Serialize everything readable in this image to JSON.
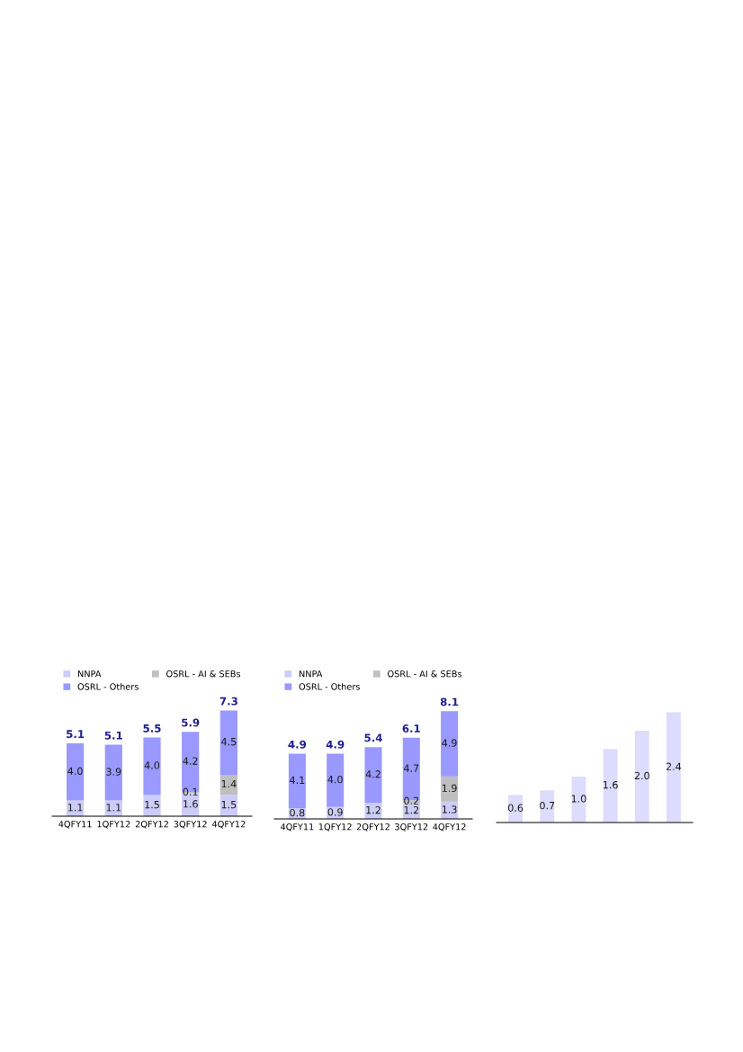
{
  "chart_data": [
    {
      "type": "bar",
      "stacked": true,
      "categories": [
        "4QFY11",
        "1QFY12",
        "2QFY12",
        "3QFY12",
        "4QFY12"
      ],
      "tick_labels": "x",
      "legend": "top",
      "grid": false,
      "series": [
        {
          "name": "NNPA",
          "color": "#ccccf8",
          "values": [
            1.1,
            1.1,
            1.5,
            1.6,
            1.5
          ],
          "value_labels": [
            "1.1",
            "1.1",
            "1.5",
            "1.6",
            "1.5"
          ]
        },
        {
          "name": "OSRL - AI & SEBs",
          "color": "#bfbfbf",
          "values": [
            null,
            null,
            null,
            0.1,
            1.4
          ],
          "value_labels": [
            null,
            null,
            null,
            "0.1",
            "1.4"
          ]
        },
        {
          "name": "OSRL - Others",
          "color": "#9999ff",
          "values": [
            4.0,
            3.9,
            4.0,
            4.2,
            4.5
          ],
          "value_labels": [
            "4.0",
            "3.9",
            "4.0",
            "4.2",
            "4.5"
          ]
        }
      ],
      "totals": [
        "5.1",
        "5.1",
        "5.5",
        "5.9",
        "7.3"
      ]
    },
    {
      "type": "bar",
      "stacked": true,
      "categories": [
        "4QFY11",
        "1QFY12",
        "2QFY12",
        "3QFY12",
        "4QFY12"
      ],
      "tick_labels": "x",
      "legend": "top",
      "grid": false,
      "series": [
        {
          "name": "NNPA",
          "color": "#ccccf8",
          "values": [
            0.8,
            0.9,
            1.2,
            1.2,
            1.3
          ],
          "value_labels": [
            "0.8",
            "0.9",
            "1.2",
            "1.2",
            "1.3"
          ]
        },
        {
          "name": "OSRL - AI & SEBs",
          "color": "#bfbfbf",
          "values": [
            null,
            null,
            null,
            0.2,
            1.9
          ],
          "value_labels": [
            null,
            null,
            null,
            "0.2",
            "1.9"
          ]
        },
        {
          "name": "OSRL - Others",
          "color": "#9999ff",
          "values": [
            4.1,
            4.0,
            4.2,
            4.7,
            4.9
          ],
          "value_labels": [
            "4.1",
            "4.0",
            "4.2",
            "4.7",
            "4.9"
          ]
        }
      ],
      "totals": [
        "4.9",
        "4.9",
        "5.4",
        "6.1",
        "8.1"
      ]
    },
    {
      "type": "bar",
      "categories": [
        null,
        null,
        null,
        null,
        null,
        null
      ],
      "tick_labels": false,
      "legend": false,
      "grid": false,
      "series": [
        {
          "color": "#dcdcfc",
          "values": [
            0.6,
            0.7,
            1.0,
            1.6,
            2.0,
            2.4
          ],
          "value_labels": [
            "0.6",
            "0.7",
            "1.0",
            "1.6",
            "2.0",
            "2.4"
          ]
        }
      ]
    }
  ]
}
